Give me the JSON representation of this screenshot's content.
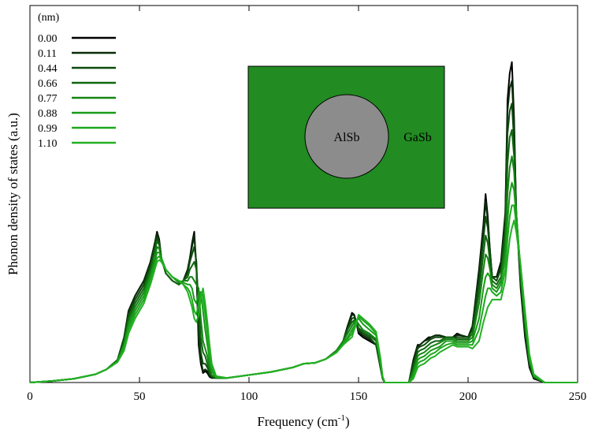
{
  "chart_data": {
    "type": "line",
    "title": "",
    "xlabel": "Frequency (cm",
    "xlabel_sup": "-1",
    "xlabel_suffix": ")",
    "ylabel": "Phonon density of states (a.u.)",
    "xlim": [
      0,
      250
    ],
    "ylim": [
      0,
      1.0
    ],
    "xticks": [
      0,
      50,
      100,
      150,
      200,
      250
    ],
    "y_ticklabels_shown": false,
    "grid": false,
    "legend_title": "(nm)",
    "legend_position": "top-left",
    "inset": {
      "core_label": "AlSb",
      "shell_label": "GaSb",
      "shell_color": "#228b22",
      "core_color": "#8c8c8c"
    },
    "x": [
      0,
      10,
      20,
      30,
      35,
      40,
      43,
      45,
      48,
      52,
      55,
      57,
      58,
      59,
      60,
      62,
      65,
      68,
      70,
      72,
      73,
      74,
      75,
      76,
      77,
      78,
      79,
      80,
      81,
      82,
      83,
      85,
      90,
      100,
      110,
      120,
      125,
      130,
      135,
      140,
      143,
      145,
      147,
      148,
      149,
      150,
      152,
      155,
      158,
      160,
      161,
      162,
      165,
      170,
      173,
      175,
      177,
      178,
      180,
      182,
      183,
      185,
      187,
      190,
      193,
      195,
      197,
      200,
      202,
      205,
      207,
      208,
      209,
      210,
      211,
      213,
      215,
      217,
      218,
      219,
      220,
      221,
      222,
      224,
      226,
      228,
      230,
      235,
      240,
      250
    ],
    "series": [
      {
        "name": "0.00",
        "color": "#000000",
        "values": [
          0,
          0.004,
          0.01,
          0.022,
          0.035,
          0.06,
          0.12,
          0.19,
          0.23,
          0.27,
          0.32,
          0.37,
          0.4,
          0.38,
          0.33,
          0.29,
          0.27,
          0.26,
          0.27,
          0.3,
          0.33,
          0.37,
          0.4,
          0.3,
          0.1,
          0.05,
          0.025,
          0.03,
          0.025,
          0.015,
          0.012,
          0.012,
          0.012,
          0.02,
          0.028,
          0.04,
          0.05,
          0.052,
          0.062,
          0.085,
          0.11,
          0.15,
          0.185,
          0.18,
          0.16,
          0.13,
          0.12,
          0.11,
          0.1,
          0.04,
          0.01,
          0,
          0,
          0,
          0,
          0.06,
          0.1,
          0.1,
          0.11,
          0.12,
          0.12,
          0.125,
          0.125,
          0.12,
          0.12,
          0.13,
          0.125,
          0.12,
          0.15,
          0.3,
          0.42,
          0.5,
          0.44,
          0.35,
          0.28,
          0.28,
          0.32,
          0.45,
          0.75,
          0.82,
          0.85,
          0.7,
          0.45,
          0.25,
          0.12,
          0.04,
          0.01,
          0,
          0,
          0
        ]
      },
      {
        "name": "0.11",
        "color": "#0a2c0a",
        "values": [
          0,
          0.004,
          0.01,
          0.022,
          0.035,
          0.06,
          0.12,
          0.19,
          0.23,
          0.27,
          0.32,
          0.37,
          0.395,
          0.375,
          0.33,
          0.29,
          0.27,
          0.26,
          0.27,
          0.3,
          0.33,
          0.36,
          0.39,
          0.31,
          0.12,
          0.06,
          0.03,
          0.035,
          0.03,
          0.018,
          0.013,
          0.012,
          0.012,
          0.02,
          0.028,
          0.04,
          0.05,
          0.052,
          0.062,
          0.085,
          0.11,
          0.15,
          0.18,
          0.178,
          0.16,
          0.135,
          0.125,
          0.115,
          0.1,
          0.04,
          0.01,
          0,
          0,
          0,
          0,
          0.055,
          0.095,
          0.1,
          0.11,
          0.115,
          0.12,
          0.125,
          0.125,
          0.12,
          0.12,
          0.125,
          0.125,
          0.12,
          0.15,
          0.29,
          0.41,
          0.48,
          0.43,
          0.35,
          0.28,
          0.28,
          0.31,
          0.44,
          0.72,
          0.78,
          0.8,
          0.68,
          0.45,
          0.26,
          0.13,
          0.045,
          0.012,
          0,
          0,
          0
        ]
      },
      {
        "name": "0.44",
        "color": "#0d4a0d",
        "values": [
          0,
          0.004,
          0.01,
          0.022,
          0.035,
          0.06,
          0.12,
          0.18,
          0.22,
          0.26,
          0.31,
          0.36,
          0.385,
          0.37,
          0.33,
          0.29,
          0.27,
          0.26,
          0.27,
          0.29,
          0.32,
          0.34,
          0.36,
          0.32,
          0.17,
          0.08,
          0.05,
          0.05,
          0.04,
          0.025,
          0.015,
          0.012,
          0.012,
          0.02,
          0.028,
          0.04,
          0.05,
          0.052,
          0.062,
          0.085,
          0.11,
          0.14,
          0.17,
          0.172,
          0.16,
          0.14,
          0.13,
          0.12,
          0.1,
          0.04,
          0.01,
          0,
          0,
          0,
          0,
          0.05,
          0.09,
          0.095,
          0.1,
          0.11,
          0.115,
          0.12,
          0.12,
          0.12,
          0.12,
          0.12,
          0.12,
          0.12,
          0.14,
          0.27,
          0.38,
          0.44,
          0.41,
          0.34,
          0.28,
          0.27,
          0.3,
          0.42,
          0.66,
          0.72,
          0.74,
          0.64,
          0.45,
          0.27,
          0.14,
          0.05,
          0.013,
          0,
          0,
          0
        ]
      },
      {
        "name": "0.66",
        "color": "#0f660f",
        "values": [
          0,
          0.004,
          0.01,
          0.022,
          0.035,
          0.06,
          0.11,
          0.17,
          0.21,
          0.25,
          0.3,
          0.35,
          0.375,
          0.365,
          0.33,
          0.29,
          0.27,
          0.26,
          0.27,
          0.28,
          0.3,
          0.31,
          0.32,
          0.3,
          0.22,
          0.12,
          0.08,
          0.07,
          0.05,
          0.03,
          0.018,
          0.012,
          0.012,
          0.02,
          0.028,
          0.04,
          0.05,
          0.052,
          0.062,
          0.085,
          0.11,
          0.14,
          0.16,
          0.165,
          0.16,
          0.145,
          0.135,
          0.125,
          0.11,
          0.045,
          0.012,
          0,
          0,
          0,
          0,
          0.04,
          0.08,
          0.085,
          0.09,
          0.1,
          0.105,
          0.11,
          0.11,
          0.12,
          0.12,
          0.115,
          0.115,
          0.115,
          0.13,
          0.24,
          0.34,
          0.39,
          0.37,
          0.32,
          0.27,
          0.26,
          0.28,
          0.39,
          0.58,
          0.65,
          0.67,
          0.6,
          0.45,
          0.28,
          0.15,
          0.055,
          0.015,
          0,
          0,
          0
        ]
      },
      {
        "name": "0.77",
        "color": "#138413",
        "values": [
          0,
          0.004,
          0.01,
          0.022,
          0.035,
          0.058,
          0.1,
          0.16,
          0.2,
          0.24,
          0.29,
          0.33,
          0.36,
          0.355,
          0.33,
          0.3,
          0.28,
          0.265,
          0.27,
          0.27,
          0.28,
          0.28,
          0.27,
          0.26,
          0.25,
          0.17,
          0.11,
          0.09,
          0.07,
          0.04,
          0.02,
          0.012,
          0.012,
          0.02,
          0.028,
          0.04,
          0.05,
          0.052,
          0.062,
          0.085,
          0.11,
          0.13,
          0.15,
          0.16,
          0.165,
          0.155,
          0.14,
          0.13,
          0.115,
          0.05,
          0.013,
          0,
          0,
          0,
          0,
          0.03,
          0.07,
          0.075,
          0.08,
          0.09,
          0.095,
          0.1,
          0.105,
          0.115,
          0.115,
          0.11,
          0.11,
          0.11,
          0.12,
          0.21,
          0.3,
          0.34,
          0.33,
          0.3,
          0.26,
          0.25,
          0.27,
          0.36,
          0.5,
          0.57,
          0.6,
          0.56,
          0.45,
          0.29,
          0.16,
          0.06,
          0.017,
          0,
          0,
          0
        ]
      },
      {
        "name": "0.88",
        "color": "#189a18",
        "values": [
          0,
          0.004,
          0.01,
          0.022,
          0.035,
          0.056,
          0.1,
          0.15,
          0.19,
          0.23,
          0.28,
          0.32,
          0.345,
          0.345,
          0.33,
          0.3,
          0.28,
          0.27,
          0.265,
          0.26,
          0.26,
          0.25,
          0.22,
          0.21,
          0.24,
          0.24,
          0.19,
          0.14,
          0.1,
          0.06,
          0.03,
          0.013,
          0.012,
          0.02,
          0.028,
          0.04,
          0.05,
          0.052,
          0.062,
          0.08,
          0.105,
          0.12,
          0.14,
          0.15,
          0.165,
          0.17,
          0.155,
          0.14,
          0.125,
          0.055,
          0.014,
          0,
          0,
          0,
          0,
          0.02,
          0.06,
          0.065,
          0.07,
          0.08,
          0.085,
          0.09,
          0.095,
          0.11,
          0.11,
          0.105,
          0.105,
          0.105,
          0.11,
          0.17,
          0.25,
          0.28,
          0.29,
          0.28,
          0.25,
          0.24,
          0.26,
          0.33,
          0.43,
          0.5,
          0.53,
          0.51,
          0.44,
          0.3,
          0.17,
          0.065,
          0.018,
          0,
          0,
          0
        ]
      },
      {
        "name": "0.99",
        "color": "#1da81d",
        "values": [
          0,
          0.004,
          0.01,
          0.022,
          0.035,
          0.055,
          0.09,
          0.14,
          0.18,
          0.22,
          0.27,
          0.31,
          0.33,
          0.335,
          0.325,
          0.3,
          0.28,
          0.27,
          0.26,
          0.25,
          0.24,
          0.22,
          0.19,
          0.18,
          0.21,
          0.24,
          0.23,
          0.18,
          0.13,
          0.08,
          0.04,
          0.015,
          0.012,
          0.02,
          0.028,
          0.04,
          0.05,
          0.052,
          0.062,
          0.08,
          0.1,
          0.115,
          0.13,
          0.145,
          0.16,
          0.175,
          0.165,
          0.15,
          0.13,
          0.06,
          0.015,
          0,
          0,
          0,
          0,
          0.015,
          0.05,
          0.055,
          0.06,
          0.07,
          0.075,
          0.08,
          0.09,
          0.1,
          0.105,
          0.1,
          0.1,
          0.1,
          0.1,
          0.14,
          0.2,
          0.23,
          0.25,
          0.25,
          0.24,
          0.23,
          0.24,
          0.3,
          0.38,
          0.44,
          0.47,
          0.47,
          0.42,
          0.31,
          0.18,
          0.07,
          0.02,
          0,
          0,
          0
        ]
      },
      {
        "name": "1.10",
        "color": "#22b022",
        "values": [
          0,
          0.004,
          0.01,
          0.022,
          0.035,
          0.054,
          0.085,
          0.13,
          0.17,
          0.21,
          0.26,
          0.3,
          0.32,
          0.325,
          0.32,
          0.3,
          0.28,
          0.27,
          0.26,
          0.24,
          0.22,
          0.2,
          0.17,
          0.16,
          0.18,
          0.22,
          0.25,
          0.21,
          0.16,
          0.1,
          0.05,
          0.017,
          0.012,
          0.02,
          0.028,
          0.04,
          0.05,
          0.052,
          0.062,
          0.08,
          0.1,
          0.11,
          0.12,
          0.14,
          0.155,
          0.18,
          0.17,
          0.155,
          0.135,
          0.065,
          0.016,
          0,
          0,
          0,
          0,
          0.01,
          0.04,
          0.045,
          0.05,
          0.06,
          0.065,
          0.07,
          0.08,
          0.09,
          0.1,
          0.095,
          0.095,
          0.095,
          0.09,
          0.11,
          0.16,
          0.18,
          0.2,
          0.21,
          0.22,
          0.22,
          0.22,
          0.27,
          0.33,
          0.38,
          0.41,
          0.43,
          0.4,
          0.31,
          0.19,
          0.075,
          0.022,
          0,
          0,
          0
        ]
      }
    ]
  }
}
